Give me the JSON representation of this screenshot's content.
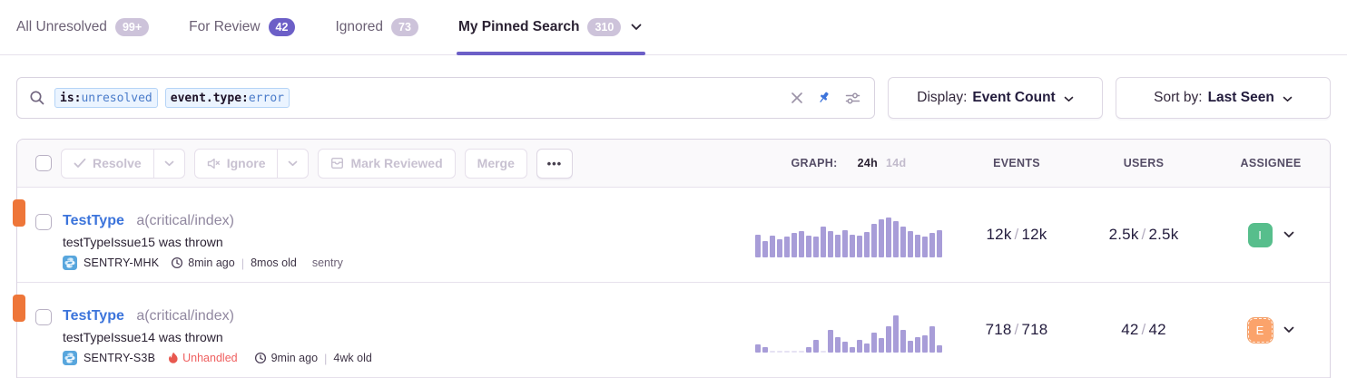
{
  "accent_color": "#6c5fc7",
  "tabs": {
    "items": [
      {
        "label": "All Unresolved",
        "badge": "99+",
        "active": false
      },
      {
        "label": "For Review",
        "badge": "42",
        "active": false
      },
      {
        "label": "Ignored",
        "badge": "73",
        "active": false
      },
      {
        "label": "My Pinned Search",
        "badge": "310",
        "active": true
      }
    ]
  },
  "search": {
    "tokens": [
      {
        "key": "is:",
        "value": "unresolved"
      },
      {
        "key": "event.type:",
        "value": "error"
      }
    ],
    "icons": [
      "search-icon",
      "clear-icon",
      "pin-icon",
      "settings-sliders-icon"
    ],
    "pin_color": "#3d74db"
  },
  "display_dropdown": {
    "label": "Display:",
    "value": "Event Count"
  },
  "sort_dropdown": {
    "label": "Sort by:",
    "value": "Last Seen"
  },
  "toolbar": {
    "resolve_label": "Resolve",
    "ignore_label": "Ignore",
    "mark_reviewed_label": "Mark Reviewed",
    "merge_label": "Merge",
    "more_label": "•••"
  },
  "columns": {
    "graph_label": "GRAPH:",
    "period_24h": "24h",
    "period_14d": "14d",
    "events": "EVENTS",
    "users": "USERS",
    "assignee": "ASSIGNEE"
  },
  "chart_data": [
    {
      "type": "bar",
      "title": "issue 1 events last 24h",
      "values": [
        55,
        40,
        52,
        44,
        50,
        58,
        63,
        52,
        50,
        74,
        62,
        55,
        66,
        55,
        52,
        60,
        80,
        92,
        95,
        86,
        74,
        62,
        54,
        50,
        58,
        66
      ]
    },
    {
      "type": "bar",
      "title": "issue 2 events last 24h",
      "values": [
        20,
        14,
        3,
        3,
        3,
        3,
        3,
        12,
        30,
        3,
        55,
        38,
        26,
        12,
        30,
        22,
        48,
        34,
        62,
        90,
        55,
        28,
        38,
        42,
        64,
        18
      ]
    }
  ],
  "issues": [
    {
      "level_color": "#ee7639",
      "title": "TestType",
      "annotation": "a(critical/index)",
      "message": "testTypeIssue15 was thrown",
      "short_id": "SENTRY-MHK",
      "age": "8min ago",
      "created": "8mos old",
      "extra": "sentry",
      "events_count": "12k",
      "events_total": "12k",
      "users_count": "2.5k",
      "users_total": "2.5k",
      "assignee": {
        "initial": "I",
        "color": "#57be8c",
        "suggested": false
      },
      "graph": [
        55,
        40,
        52,
        44,
        50,
        58,
        63,
        52,
        50,
        74,
        62,
        55,
        66,
        55,
        52,
        60,
        80,
        92,
        95,
        86,
        74,
        62,
        54,
        50,
        58,
        66
      ]
    },
    {
      "level_color": "#ee7639",
      "title": "TestType",
      "annotation": "a(critical/index)",
      "message": "testTypeIssue14 was thrown",
      "short_id": "SENTRY-S3B",
      "unhandled_label": "Unhandled",
      "age": "9min ago",
      "created": "4wk old",
      "events_count": "718",
      "events_total": "718",
      "users_count": "42",
      "users_total": "42",
      "assignee": {
        "initial": "E",
        "color": "#fba36b",
        "suggested": true
      },
      "graph": [
        20,
        14,
        3,
        3,
        3,
        3,
        3,
        12,
        30,
        3,
        55,
        38,
        26,
        12,
        30,
        22,
        48,
        34,
        62,
        90,
        55,
        28,
        38,
        42,
        64,
        18
      ]
    }
  ],
  "meta": {
    "slash": "/",
    "divider": "|"
  }
}
